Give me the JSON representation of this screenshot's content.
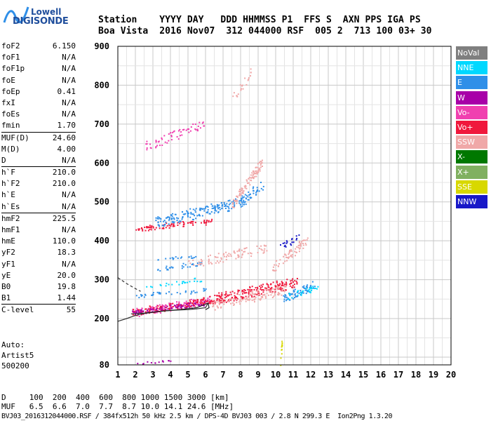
{
  "logo": {
    "line1": "Lowell",
    "line2": "DIGISONDE"
  },
  "header": {
    "line1": "Station    YYYY DAY   DDD HHMMSS P1  FFS S  AXN PPS IGA PS",
    "line2": "Boa Vista  2016 Nov07  312 044000 RSF  005 2  713 100 03+ 30"
  },
  "params": [
    {
      "group": [
        {
          "name": "foF2",
          "value": "6.150"
        },
        {
          "name": "foF1",
          "value": "N/A"
        },
        {
          "name": "foF1p",
          "value": "N/A"
        },
        {
          "name": "foE",
          "value": "N/A"
        },
        {
          "name": "foEp",
          "value": "0.41"
        },
        {
          "name": "fxI",
          "value": "N/A"
        },
        {
          "name": "foEs",
          "value": "N/A"
        },
        {
          "name": "fmin",
          "value": "1.70"
        }
      ]
    },
    {
      "group": [
        {
          "name": "MUF(D)",
          "value": "24.60"
        },
        {
          "name": "M(D)",
          "value": "4.00"
        },
        {
          "name": "D",
          "value": "N/A"
        }
      ]
    },
    {
      "group": [
        {
          "name": "h`F",
          "value": "210.0"
        },
        {
          "name": "h`F2",
          "value": "210.0"
        },
        {
          "name": "h`E",
          "value": "N/A"
        },
        {
          "name": "h`Es",
          "value": "N/A"
        }
      ]
    },
    {
      "group": [
        {
          "name": "hmF2",
          "value": "225.5"
        },
        {
          "name": "hmF1",
          "value": "N/A"
        },
        {
          "name": "hmE",
          "value": "110.0"
        },
        {
          "name": "yF2",
          "value": "18.3"
        },
        {
          "name": "yF1",
          "value": "N/A"
        },
        {
          "name": "yE",
          "value": "20.0"
        },
        {
          "name": "B0",
          "value": "19.8"
        },
        {
          "name": "B1",
          "value": "1.44"
        }
      ]
    },
    {
      "group": [
        {
          "name": "C-level",
          "value": "55"
        }
      ]
    }
  ],
  "auto": {
    "line1": "Auto:",
    "line2": "Artist5",
    "line3": "500200"
  },
  "legend": [
    {
      "label": "NoVal",
      "color": "#7f7f7f"
    },
    {
      "label": "NNE",
      "color": "#00d8ff"
    },
    {
      "label": "E",
      "color": "#2f8fe8"
    },
    {
      "label": "W",
      "color": "#a800a8"
    },
    {
      "label": "Vo-",
      "color": "#f040b0"
    },
    {
      "label": "Vo+",
      "color": "#f0183c"
    },
    {
      "label": "SSW",
      "color": "#f0a8a8"
    },
    {
      "label": "X-",
      "color": "#007800"
    },
    {
      "label": "X+",
      "color": "#80b060"
    },
    {
      "label": "SSE",
      "color": "#d8d800"
    },
    {
      "label": "NNW",
      "color": "#1818c8"
    }
  ],
  "bottom": {
    "line1": "D     100  200  400  600  800 1000 1500 3000 [km]",
    "line2": "MUF   6.5  6.6  7.0  7.7  8.7 10.0 14.1 24.6 [MHz]",
    "line3": "BVJ03_2016312044000.RSF / 384fx512h 50 kHz 2.5 km / DPS-4D BVJ03 003 / 2.8 N 299.3 E  Ion2Png 1.3.20"
  },
  "chart_data": {
    "type": "scatter",
    "title": "",
    "xlabel": "",
    "ylabel": "",
    "xlim": [
      1,
      20
    ],
    "ylim": [
      80,
      900
    ],
    "xticks": [
      "1",
      "2",
      "3",
      "4",
      "5",
      "6",
      "7",
      "8",
      "9",
      "10",
      "11",
      "12",
      "13",
      "14",
      "15",
      "16",
      "17",
      "18",
      "19",
      "20"
    ],
    "yticks": [
      "80",
      "200",
      "300",
      "400",
      "500",
      "600",
      "700",
      "800",
      "900"
    ],
    "grid": true,
    "legend_position": "right",
    "profile_curve": {
      "name": "profile",
      "x": [
        1.0,
        1.5,
        2.0,
        2.5,
        3.0,
        3.5,
        4.0,
        4.5,
        5.0,
        5.5,
        6.0,
        6.15
      ],
      "y": [
        193,
        200,
        208,
        213,
        216,
        219,
        221,
        222,
        223,
        225,
        228,
        240
      ]
    },
    "trace_curve": {
      "x": [
        1.75,
        2.5,
        3.5,
        4.5,
        5.5,
        6.15,
        6.2,
        6.0
      ],
      "y": [
        212,
        214,
        219,
        223,
        228,
        240,
        228,
        223
      ]
    },
    "dashed_extrapolation": {
      "x": [
        1.0,
        1.5,
        2.0,
        2.3
      ],
      "y": [
        305,
        290,
        277,
        270
      ]
    },
    "clusters": [
      {
        "series": "Vo-",
        "x": [
          1.8,
          6.3
        ],
        "y": [
          212,
          247
        ],
        "density": 1.0
      },
      {
        "series": "Vo+",
        "x": [
          1.8,
          6.2
        ],
        "y": [
          214,
          244
        ],
        "density": 1.0
      },
      {
        "series": "W",
        "x": [
          1.8,
          6.0
        ],
        "y": [
          214,
          238
        ],
        "density": 0.8
      },
      {
        "series": "Vo+",
        "x": [
          6.2,
          11.2
        ],
        "y": [
          245,
          292
        ],
        "density": 1.1
      },
      {
        "series": "SSW",
        "x": [
          6.3,
          10.6
        ],
        "y": [
          230,
          275
        ],
        "density": 0.7
      },
      {
        "series": "E",
        "x": [
          10.4,
          12.2
        ],
        "y": [
          250,
          285
        ],
        "density": 1.1
      },
      {
        "series": "NNE",
        "x": [
          10.6,
          12.4
        ],
        "y": [
          255,
          278
        ],
        "density": 0.6
      },
      {
        "series": "E",
        "x": [
          2.0,
          6.0
        ],
        "y": [
          258,
          272
        ],
        "density": 0.6
      },
      {
        "series": "E",
        "x": [
          3.0,
          5.8
        ],
        "y": [
          325,
          340
        ],
        "density": 0.6
      },
      {
        "series": "E",
        "x": [
          3.0,
          5.5
        ],
        "y": [
          350,
          360
        ],
        "density": 0.5
      },
      {
        "series": "NNE",
        "x": [
          2.5,
          5.8
        ],
        "y": [
          280,
          300
        ],
        "density": 0.3
      },
      {
        "series": "SSW",
        "x": [
          5.0,
          9.5
        ],
        "y": [
          340,
          380
        ],
        "density": 0.5
      },
      {
        "series": "SSW",
        "x": [
          9.8,
          11.8
        ],
        "y": [
          330,
          400
        ],
        "density": 0.5
      },
      {
        "series": "NNW",
        "x": [
          10.2,
          11.4
        ],
        "y": [
          382,
          410
        ],
        "density": 0.4
      },
      {
        "series": "Vo+",
        "x": [
          2.0,
          6.5
        ],
        "y": [
          428,
          450
        ],
        "density": 0.9
      },
      {
        "series": "E",
        "x": [
          3.0,
          8.3
        ],
        "y": [
          445,
          500
        ],
        "density": 0.7
      },
      {
        "series": "SSW",
        "x": [
          7.5,
          9.2
        ],
        "y": [
          490,
          600
        ],
        "density": 0.6
      },
      {
        "series": "E",
        "x": [
          8.0,
          9.3
        ],
        "y": [
          500,
          545
        ],
        "density": 0.6
      },
      {
        "series": "Vo-",
        "x": [
          2.5,
          6.0
        ],
        "y": [
          640,
          700
        ],
        "density": 0.3
      },
      {
        "series": "SSW",
        "x": [
          7.5,
          8.6
        ],
        "y": [
          760,
          830
        ],
        "density": 0.2
      },
      {
        "series": "W",
        "x": [
          1.9,
          4.0
        ],
        "y": [
          82,
          88
        ],
        "density": 0.5
      },
      {
        "series": "SSE",
        "x": [
          10.25,
          10.35
        ],
        "y": [
          88,
          140
        ],
        "density": 1.0
      }
    ]
  }
}
